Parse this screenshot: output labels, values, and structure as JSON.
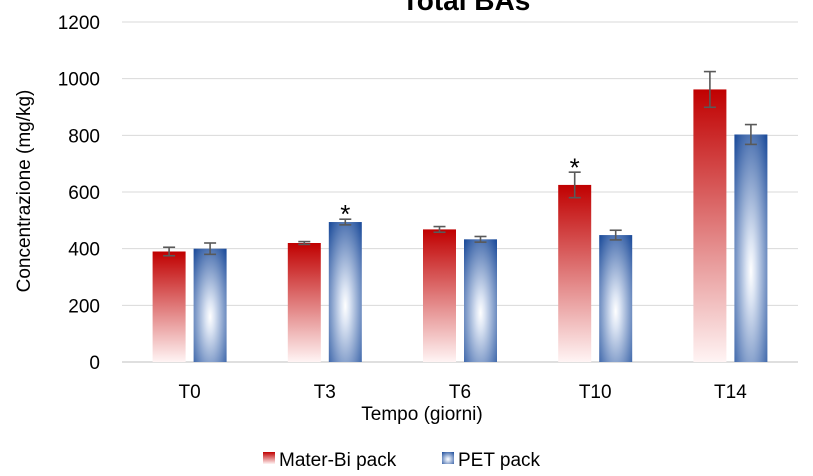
{
  "chart_data": {
    "type": "bar",
    "title": "Total BAs",
    "xlabel": "Tempo (giorni)",
    "ylabel": "Concentrazione (mg/kg)",
    "categories": [
      "T0",
      "T3",
      "T6",
      "T10",
      "T14"
    ],
    "ylim": [
      0,
      1200
    ],
    "yticks": [
      0,
      200,
      400,
      600,
      800,
      1000,
      1200
    ],
    "grid": true,
    "legend_position": "bottom",
    "series": [
      {
        "name": "Mater-Bi pack",
        "color": "#c00000",
        "values": [
          390,
          420,
          468,
          625,
          962
        ],
        "errors": [
          15,
          5,
          10,
          45,
          63
        ]
      },
      {
        "name": "PET pack",
        "color": "#1f4e9c",
        "values": [
          400,
          494,
          433,
          448,
          803
        ],
        "errors": [
          20,
          10,
          10,
          17,
          35
        ]
      }
    ],
    "annotations": [
      {
        "text": "*",
        "category": "T3",
        "series": "PET pack",
        "y": 540
      },
      {
        "text": "*",
        "category": "T10",
        "series": "Mater-Bi pack",
        "y": 705
      }
    ]
  }
}
